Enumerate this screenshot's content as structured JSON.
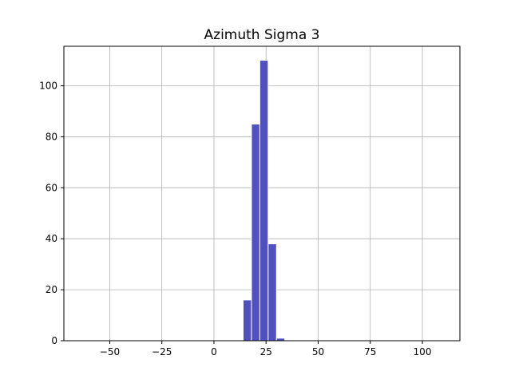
{
  "chart_data": {
    "type": "bar",
    "title": "Azimuth Sigma 3",
    "xlabel": "",
    "ylabel": "",
    "xlim": [
      -72,
      118
    ],
    "ylim": [
      0,
      115.5
    ],
    "grid": true,
    "bar_color": "#5050c0",
    "bar_edge_color": "#ffffff",
    "x_ticks": [
      -50,
      -25,
      0,
      25,
      50,
      75,
      100
    ],
    "x_tick_labels": [
      "−50",
      "−25",
      "0",
      "25",
      "50",
      "75",
      "100"
    ],
    "y_ticks": [
      0,
      20,
      40,
      60,
      80,
      100
    ],
    "y_tick_labels": [
      "0",
      "20",
      "40",
      "60",
      "80",
      "100"
    ],
    "bins": [
      {
        "x0": 14.0,
        "x1": 18.0,
        "value": 16
      },
      {
        "x0": 18.0,
        "x1": 22.0,
        "value": 85
      },
      {
        "x0": 22.0,
        "x1": 26.0,
        "value": 110
      },
      {
        "x0": 26.0,
        "x1": 30.0,
        "value": 38
      },
      {
        "x0": 30.0,
        "x1": 34.0,
        "value": 1
      }
    ]
  }
}
